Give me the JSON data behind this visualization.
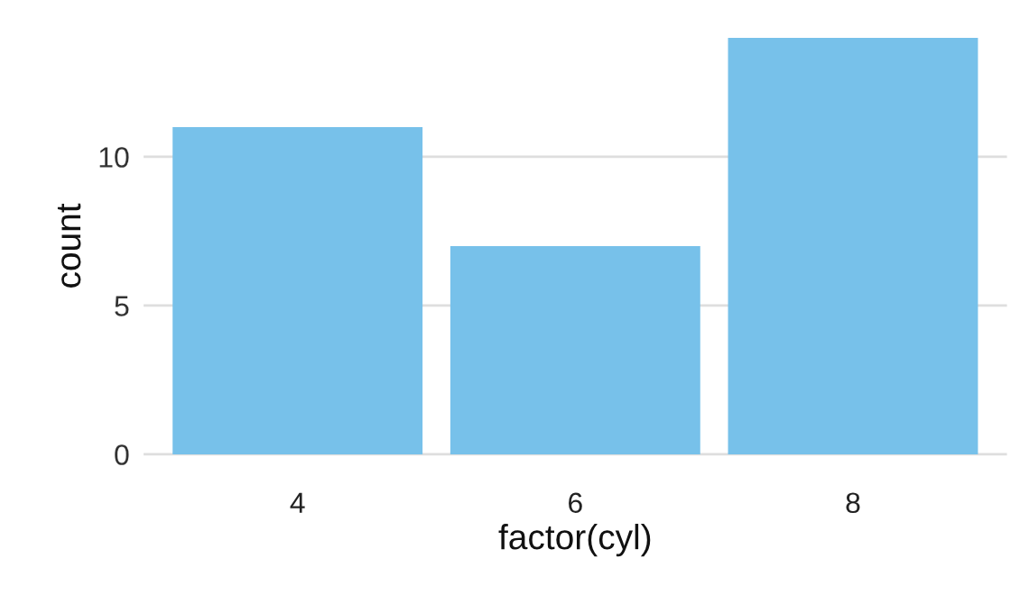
{
  "chart_data": {
    "type": "bar",
    "xlabel": "factor(cyl)",
    "ylabel": "count",
    "categories": [
      "4",
      "6",
      "8"
    ],
    "values": [
      11,
      7,
      14
    ],
    "color": "#77c1ea",
    "ylim": [
      0,
      14
    ],
    "yticks": [
      0,
      5,
      10
    ],
    "grid": "y"
  }
}
